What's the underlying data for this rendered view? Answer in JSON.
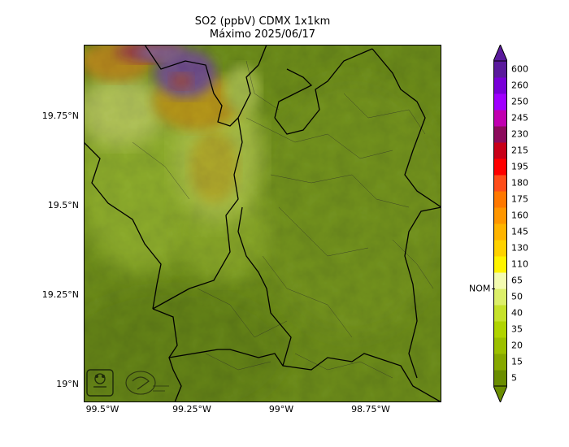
{
  "title": {
    "line1": "SO2 (ppbV) CDMX 1x1km",
    "line2": "Máximo 2025/06/17"
  },
  "axes": {
    "lat_labels": [
      "19.75°N",
      "19.5°N",
      "19.25°N",
      "19°N"
    ],
    "lon_labels": [
      "99.5°W",
      "99.25°W",
      "99°W",
      "98.75°W"
    ]
  },
  "colorbar": {
    "levels": [
      "5",
      "15",
      "20",
      "35",
      "40",
      "50",
      "65",
      "110",
      "130",
      "145",
      "160",
      "175",
      "180",
      "195",
      "215",
      "230",
      "245",
      "250",
      "260",
      "600"
    ],
    "colors": [
      "#6a8d00",
      "#86a800",
      "#9cc000",
      "#b0d400",
      "#c6e22a",
      "#dcef6a",
      "#f3fbb0",
      "#fff400",
      "#ffd200",
      "#ffb400",
      "#ff9600",
      "#ff7800",
      "#ff4d1a",
      "#ff0000",
      "#c80018",
      "#8c0b5c",
      "#c000b0",
      "#a000ff",
      "#7800d8",
      "#5a1a9c"
    ],
    "extend": "both",
    "reference_label": "NOM",
    "reference_between": [
      "50",
      "65"
    ]
  },
  "logos": {
    "left": "SEDEMA",
    "right": "SEDEMA"
  }
}
